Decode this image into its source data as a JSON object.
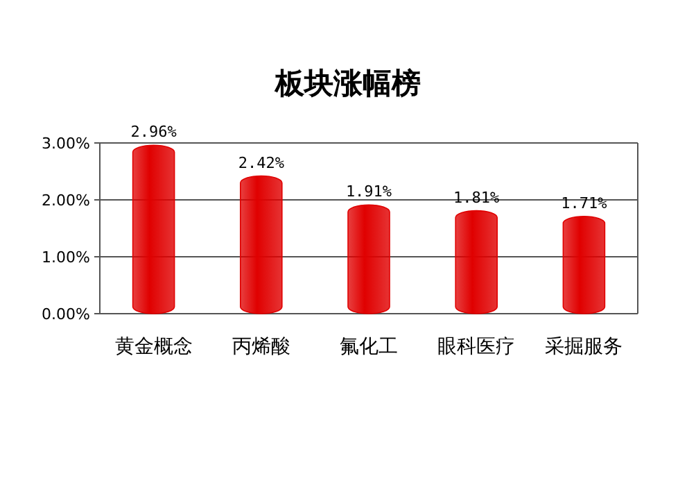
{
  "chart_data": {
    "type": "bar",
    "title": "板块涨幅榜",
    "categories": [
      "黄金概念",
      "丙烯酸",
      "氟化工",
      "眼科医疗",
      "采掘服务"
    ],
    "values": [
      2.96,
      2.42,
      1.91,
      1.81,
      1.71
    ],
    "value_labels": [
      "2.96%",
      "2.42%",
      "1.91%",
      "1.81%",
      "1.71%"
    ],
    "color": "#e00000",
    "ylim": [
      0,
      3
    ],
    "yticks": [
      {
        "value": 0,
        "label": "0.00%"
      },
      {
        "value": 1,
        "label": "1.00%"
      },
      {
        "value": 2,
        "label": "2.00%"
      },
      {
        "value": 3,
        "label": "3.00%"
      }
    ],
    "grid": "y"
  }
}
